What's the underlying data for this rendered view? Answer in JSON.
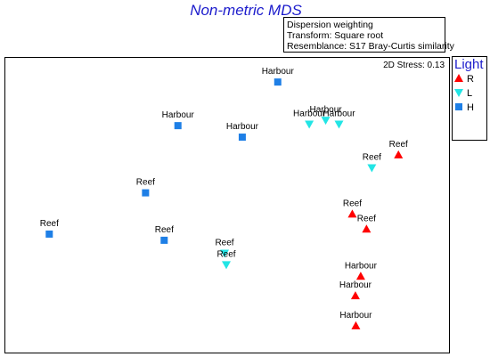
{
  "chart_data": {
    "type": "scatter",
    "title": "Non-metric MDS",
    "info_lines": [
      "Dispersion weighting",
      "Transform: Square root",
      "Resemblance: S17 Bray-Curtis similarity"
    ],
    "stress": "2D Stress: 0.13",
    "xlim": [
      0,
      100
    ],
    "ylim": [
      0,
      100
    ],
    "grid": false,
    "axes_visible": false,
    "legend": {
      "title": "Light",
      "position": "right-outside-top",
      "entries": [
        {
          "key": "R",
          "label": "R",
          "marker": "triangle-up",
          "color": "#ff0000"
        },
        {
          "key": "L",
          "label": "L",
          "marker": "triangle-down",
          "color": "#22e5e5"
        },
        {
          "key": "H",
          "label": "H",
          "marker": "square",
          "color": "#1e7fe6"
        }
      ]
    },
    "points": [
      {
        "label": "Harbour",
        "group": "H",
        "x": 61.4,
        "y": 91.8
      },
      {
        "label": "Harbour",
        "group": "H",
        "x": 38.9,
        "y": 77.0
      },
      {
        "label": "Harbour",
        "group": "H",
        "x": 53.4,
        "y": 73.1
      },
      {
        "label": "Reef",
        "group": "H",
        "x": 31.6,
        "y": 54.2
      },
      {
        "label": "Reef",
        "group": "H",
        "x": 9.9,
        "y": 40.2
      },
      {
        "label": "Reef",
        "group": "H",
        "x": 35.8,
        "y": 38.1
      },
      {
        "label": "Harbour",
        "group": "L",
        "x": 68.5,
        "y": 77.5
      },
      {
        "label": "Harbour",
        "group": "L",
        "x": 72.2,
        "y": 78.8
      },
      {
        "label": "Harbour",
        "group": "L",
        "x": 75.2,
        "y": 77.5
      },
      {
        "label": "Reef",
        "group": "L",
        "x": 82.6,
        "y": 62.7
      },
      {
        "label": "Reef",
        "group": "L",
        "x": 49.4,
        "y": 33.7
      },
      {
        "label": "Reef",
        "group": "L",
        "x": 49.8,
        "y": 29.8
      },
      {
        "label": "Reef",
        "group": "R",
        "x": 88.6,
        "y": 67.1
      },
      {
        "label": "Reef",
        "group": "R",
        "x": 78.2,
        "y": 47.0
      },
      {
        "label": "Reef",
        "group": "R",
        "x": 81.4,
        "y": 41.9
      },
      {
        "label": "Harbour",
        "group": "R",
        "x": 80.1,
        "y": 25.9
      },
      {
        "label": "Harbour",
        "group": "R",
        "x": 78.9,
        "y": 19.3
      },
      {
        "label": "Harbour",
        "group": "R",
        "x": 79.0,
        "y": 9.1
      }
    ]
  }
}
